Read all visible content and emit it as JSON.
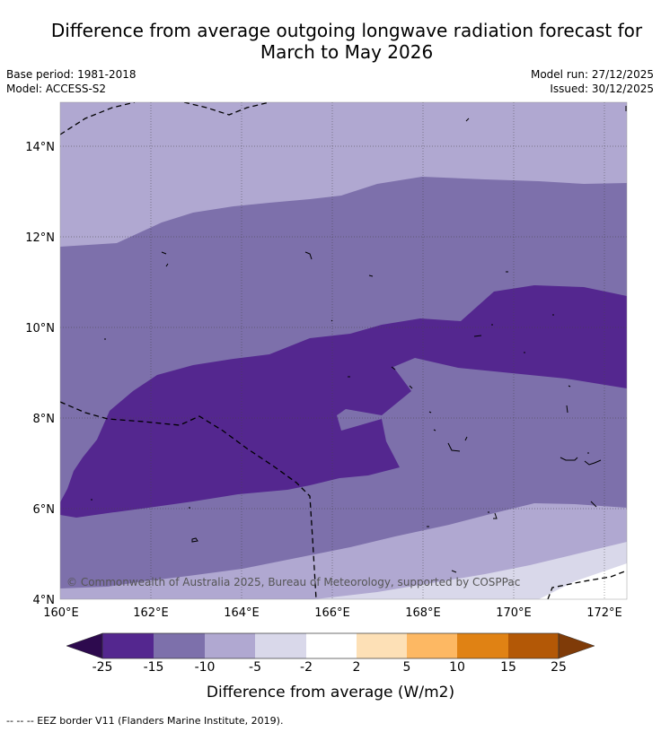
{
  "title": {
    "line1": "Difference from average outgoing longwave radiation forecast for",
    "line2": "March to May 2026"
  },
  "meta": {
    "base_period": "Base period: 1981-2018",
    "model": "Model: ACCESS-S2",
    "model_run": "Model run: 27/12/2025",
    "issued": "Issued: 30/12/2025"
  },
  "map": {
    "lat_labels": [
      "14°N",
      "12°N",
      "10°N",
      "8°N",
      "6°N",
      "4°N"
    ],
    "lon_labels": [
      "160°E",
      "162°E",
      "164°E",
      "166°E",
      "168°E",
      "170°E",
      "172°E"
    ],
    "copyright": "© Commonwealth of Australia 2025, Bureau of Meteorology, supported by COSPPac"
  },
  "colorbar": {
    "labels": [
      "-25",
      "-15",
      "-10",
      "-5",
      "-2",
      "2",
      "5",
      "10",
      "15",
      "25"
    ],
    "colors": [
      "#2d0a4e",
      "#54278f",
      "#7d70ab",
      "#b0a8d1",
      "#d9d8ea",
      "#ffffff",
      "#fde0b6",
      "#fdb863",
      "#e08214",
      "#b35806",
      "#7f3b08"
    ],
    "title": "Difference from average (W/m2)"
  },
  "footer": "--  --  -- EEZ border V11 (Flanders Marine Institute, 2019)."
}
